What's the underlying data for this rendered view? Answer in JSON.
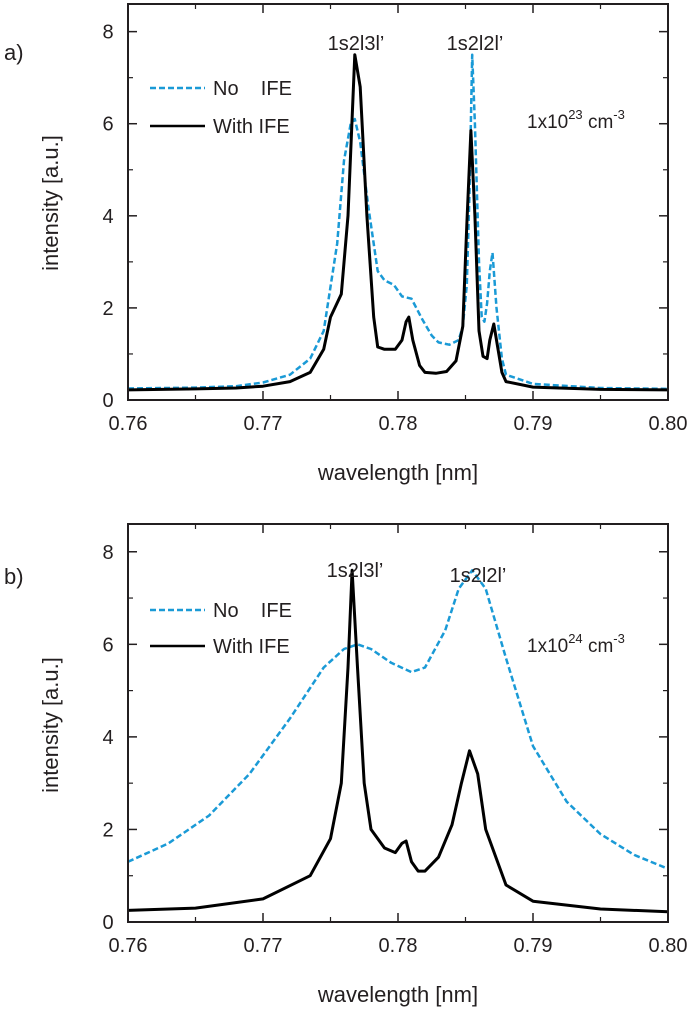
{
  "colors": {
    "no_ife": "#1a9ad6",
    "with_ife": "#000000",
    "axis": "#231f20"
  },
  "chart_data": [
    {
      "type": "line",
      "panel_label": "a)",
      "xlabel": "wavelength [nm]",
      "ylabel": "intensity [a.u.]",
      "xlim": [
        0.76,
        0.8
      ],
      "ylim": [
        0,
        8.6
      ],
      "xticks": [
        "0.76",
        "0.77",
        "0.78",
        "0.79",
        "0.80"
      ],
      "yticks": [
        "0",
        "2",
        "4",
        "6",
        "8"
      ],
      "grid": false,
      "legend_position": "top-left",
      "annotations": [
        "1s2l3l’",
        "1s2l2l’"
      ],
      "density_label": {
        "base": "1x10",
        "exponent": "23",
        "unit": " cm",
        "unit_exponent": "-3"
      },
      "series": [
        {
          "name": "No    IFE",
          "style": "dashed",
          "points": [
            [
              0.76,
              0.25
            ],
            [
              0.765,
              0.27
            ],
            [
              0.768,
              0.3
            ],
            [
              0.77,
              0.38
            ],
            [
              0.772,
              0.55
            ],
            [
              0.7735,
              0.9
            ],
            [
              0.7745,
              1.5
            ],
            [
              0.7755,
              3.4
            ],
            [
              0.776,
              5.2
            ],
            [
              0.7765,
              6.0
            ],
            [
              0.7768,
              6.1
            ],
            [
              0.7772,
              5.6
            ],
            [
              0.7778,
              4.2
            ],
            [
              0.7785,
              2.8
            ],
            [
              0.779,
              2.6
            ],
            [
              0.7797,
              2.5
            ],
            [
              0.7803,
              2.25
            ],
            [
              0.781,
              2.2
            ],
            [
              0.7818,
              1.75
            ],
            [
              0.7825,
              1.4
            ],
            [
              0.783,
              1.25
            ],
            [
              0.7838,
              1.2
            ],
            [
              0.7845,
              1.3
            ],
            [
              0.7848,
              1.6
            ],
            [
              0.7851,
              2.5
            ],
            [
              0.7853,
              4.5
            ],
            [
              0.7855,
              7.5
            ],
            [
              0.7857,
              6.0
            ],
            [
              0.786,
              3.0
            ],
            [
              0.7862,
              1.8
            ],
            [
              0.7864,
              1.7
            ],
            [
              0.7866,
              2.1
            ],
            [
              0.7868,
              2.8
            ],
            [
              0.787,
              3.2
            ],
            [
              0.7873,
              2.0
            ],
            [
              0.7877,
              0.9
            ],
            [
              0.788,
              0.55
            ],
            [
              0.79,
              0.35
            ],
            [
              0.795,
              0.26
            ],
            [
              0.8,
              0.24
            ]
          ]
        },
        {
          "name": "With IFE",
          "style": "solid",
          "points": [
            [
              0.76,
              0.22
            ],
            [
              0.765,
              0.24
            ],
            [
              0.768,
              0.26
            ],
            [
              0.77,
              0.3
            ],
            [
              0.772,
              0.4
            ],
            [
              0.7735,
              0.6
            ],
            [
              0.7745,
              1.1
            ],
            [
              0.775,
              1.8
            ],
            [
              0.7758,
              2.3
            ],
            [
              0.7763,
              4.0
            ],
            [
              0.7768,
              7.5
            ],
            [
              0.7772,
              6.8
            ],
            [
              0.7777,
              4.0
            ],
            [
              0.7782,
              1.8
            ],
            [
              0.7785,
              1.15
            ],
            [
              0.779,
              1.1
            ],
            [
              0.7798,
              1.1
            ],
            [
              0.7803,
              1.3
            ],
            [
              0.7806,
              1.7
            ],
            [
              0.7808,
              1.8
            ],
            [
              0.7811,
              1.3
            ],
            [
              0.7816,
              0.75
            ],
            [
              0.782,
              0.6
            ],
            [
              0.7828,
              0.58
            ],
            [
              0.7836,
              0.62
            ],
            [
              0.7843,
              0.85
            ],
            [
              0.7848,
              1.6
            ],
            [
              0.7851,
              3.8
            ],
            [
              0.7854,
              5.85
            ],
            [
              0.7857,
              4.0
            ],
            [
              0.786,
              1.5
            ],
            [
              0.7863,
              0.95
            ],
            [
              0.7866,
              0.9
            ],
            [
              0.7868,
              1.3
            ],
            [
              0.7871,
              1.65
            ],
            [
              0.7873,
              1.3
            ],
            [
              0.7877,
              0.6
            ],
            [
              0.788,
              0.4
            ],
            [
              0.79,
              0.28
            ],
            [
              0.795,
              0.23
            ],
            [
              0.8,
              0.22
            ]
          ]
        }
      ]
    },
    {
      "type": "line",
      "panel_label": "b)",
      "xlabel": "wavelength [nm]",
      "ylabel": "intensity [a.u.]",
      "xlim": [
        0.76,
        0.8
      ],
      "ylim": [
        0,
        8.6
      ],
      "xticks": [
        "0.76",
        "0.77",
        "0.78",
        "0.79",
        "0.80"
      ],
      "yticks": [
        "0",
        "2",
        "4",
        "6",
        "8"
      ],
      "grid": false,
      "legend_position": "top-left",
      "annotations": [
        "1s2l3l’",
        "1s2l2l’"
      ],
      "density_label": {
        "base": "1x10",
        "exponent": "24",
        "unit": " cm",
        "unit_exponent": "-3"
      },
      "series": [
        {
          "name": "No    IFE",
          "style": "dashed",
          "points": [
            [
              0.76,
              1.3
            ],
            [
              0.763,
              1.7
            ],
            [
              0.766,
              2.3
            ],
            [
              0.769,
              3.2
            ],
            [
              0.772,
              4.4
            ],
            [
              0.7745,
              5.5
            ],
            [
              0.776,
              5.9
            ],
            [
              0.777,
              6.0
            ],
            [
              0.778,
              5.9
            ],
            [
              0.7795,
              5.6
            ],
            [
              0.781,
              5.4
            ],
            [
              0.782,
              5.5
            ],
            [
              0.7835,
              6.3
            ],
            [
              0.7845,
              7.2
            ],
            [
              0.7855,
              7.6
            ],
            [
              0.7865,
              7.2
            ],
            [
              0.788,
              5.7
            ],
            [
              0.79,
              3.8
            ],
            [
              0.7925,
              2.6
            ],
            [
              0.795,
              1.9
            ],
            [
              0.7975,
              1.45
            ],
            [
              0.8,
              1.15
            ]
          ]
        },
        {
          "name": "With IFE",
          "style": "solid",
          "points": [
            [
              0.76,
              0.25
            ],
            [
              0.765,
              0.3
            ],
            [
              0.77,
              0.5
            ],
            [
              0.7735,
              1.0
            ],
            [
              0.775,
              1.8
            ],
            [
              0.7758,
              3.0
            ],
            [
              0.7763,
              5.5
            ],
            [
              0.7766,
              7.6
            ],
            [
              0.777,
              5.5
            ],
            [
              0.7775,
              3.0
            ],
            [
              0.778,
              2.0
            ],
            [
              0.779,
              1.6
            ],
            [
              0.7798,
              1.5
            ],
            [
              0.7803,
              1.7
            ],
            [
              0.7806,
              1.75
            ],
            [
              0.781,
              1.3
            ],
            [
              0.7815,
              1.1
            ],
            [
              0.782,
              1.1
            ],
            [
              0.783,
              1.4
            ],
            [
              0.784,
              2.1
            ],
            [
              0.7847,
              3.0
            ],
            [
              0.7853,
              3.7
            ],
            [
              0.7859,
              3.2
            ],
            [
              0.7865,
              2.0
            ],
            [
              0.788,
              0.8
            ],
            [
              0.79,
              0.45
            ],
            [
              0.795,
              0.28
            ],
            [
              0.8,
              0.22
            ]
          ]
        }
      ]
    }
  ]
}
